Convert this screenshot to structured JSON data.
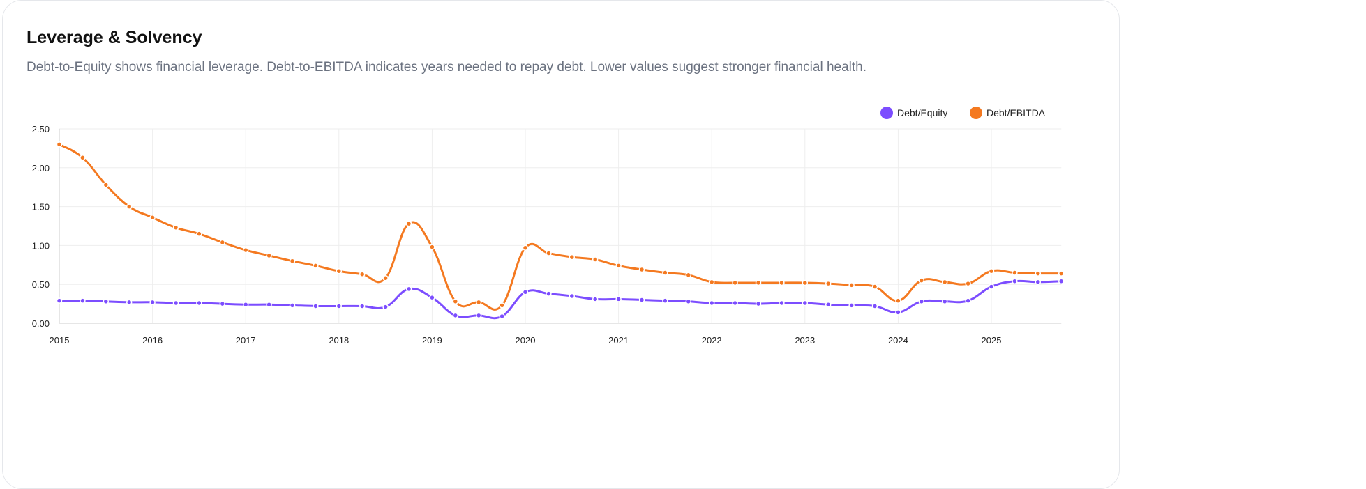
{
  "header": {
    "title": "Leverage & Solvency",
    "subtitle": "Debt-to-Equity shows financial leverage. Debt-to-EBITDA indicates years needed to repay debt. Lower values suggest stronger financial health."
  },
  "chart_data": {
    "type": "line",
    "title": "",
    "xlabel": "",
    "ylabel": "",
    "ylim": [
      0,
      2.5
    ],
    "xlim": [
      2015,
      2025.75
    ],
    "yticks": [
      "0.00",
      "0.50",
      "1.00",
      "1.50",
      "2.00",
      "2.50"
    ],
    "xticks": [
      "2015",
      "2016",
      "2017",
      "2018",
      "2019",
      "2020",
      "2021",
      "2022",
      "2023",
      "2024",
      "2025"
    ],
    "grid": true,
    "legend_position": "top-right",
    "x": [
      2015,
      2015.25,
      2015.5,
      2015.75,
      2016,
      2016.25,
      2016.5,
      2016.75,
      2017,
      2017.25,
      2017.5,
      2017.75,
      2018,
      2018.25,
      2018.5,
      2018.75,
      2019,
      2019.25,
      2019.5,
      2019.75,
      2020,
      2020.25,
      2020.5,
      2020.75,
      2021,
      2021.25,
      2021.5,
      2021.75,
      2022,
      2022.25,
      2022.5,
      2022.75,
      2023,
      2023.25,
      2023.5,
      2023.75,
      2024,
      2024.25,
      2024.5,
      2024.75,
      2025,
      2025.25,
      2025.5,
      2025.75
    ],
    "series": [
      {
        "name": "Debt/Equity",
        "color": "#7c4dff",
        "values": [
          0.29,
          0.29,
          0.28,
          0.27,
          0.27,
          0.26,
          0.26,
          0.25,
          0.24,
          0.24,
          0.23,
          0.22,
          0.22,
          0.22,
          0.21,
          0.44,
          0.33,
          0.1,
          0.1,
          0.09,
          0.4,
          0.38,
          0.35,
          0.31,
          0.31,
          0.3,
          0.29,
          0.28,
          0.26,
          0.26,
          0.25,
          0.26,
          0.26,
          0.24,
          0.23,
          0.22,
          0.14,
          0.28,
          0.28,
          0.29,
          0.47,
          0.54,
          0.53,
          0.54
        ]
      },
      {
        "name": "Debt/EBITDA",
        "color": "#f47920",
        "values": [
          2.3,
          2.13,
          1.78,
          1.5,
          1.36,
          1.23,
          1.15,
          1.04,
          0.94,
          0.87,
          0.8,
          0.74,
          0.67,
          0.63,
          0.58,
          1.28,
          0.98,
          0.28,
          0.27,
          0.23,
          0.97,
          0.9,
          0.85,
          0.82,
          0.74,
          0.69,
          0.65,
          0.62,
          0.53,
          0.52,
          0.52,
          0.52,
          0.52,
          0.51,
          0.49,
          0.47,
          0.29,
          0.55,
          0.53,
          0.51,
          0.67,
          0.65,
          0.64,
          0.64
        ]
      }
    ]
  }
}
